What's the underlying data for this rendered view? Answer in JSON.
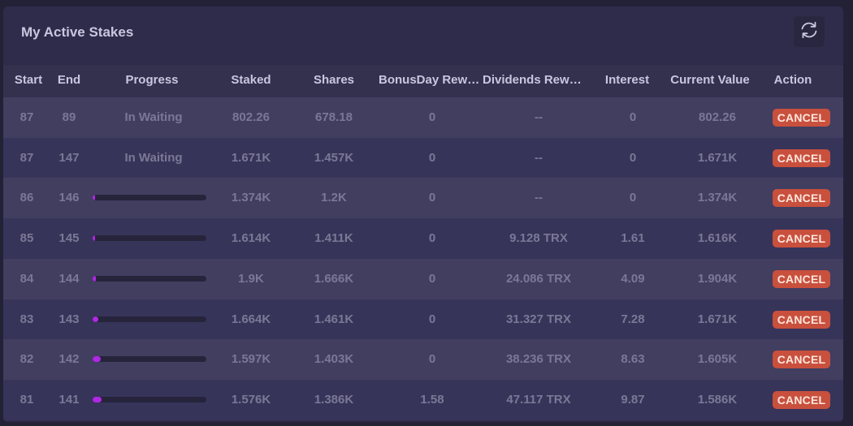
{
  "title": "My Active Stakes",
  "refresh_icon": "refresh-icon",
  "columns": [
    "Start",
    "End",
    "Progress",
    "Staked",
    "Shares",
    "BonusDay Rewa...",
    "Dividends Rewa...",
    "Interest",
    "Current Value",
    "Action"
  ],
  "cancel_label": "CANCEL",
  "progress_color": "#b028e6",
  "cancel_color": "#c8503d",
  "rows": [
    {
      "start": "87",
      "end": "89",
      "progress_text": "In Waiting",
      "progress": null,
      "staked": "802.26",
      "shares": "678.18",
      "bonus": "0",
      "dividends": "--",
      "interest": "0",
      "current_value": "802.26"
    },
    {
      "start": "87",
      "end": "147",
      "progress_text": "In Waiting",
      "progress": null,
      "staked": "1.671K",
      "shares": "1.457K",
      "bonus": "0",
      "dividends": "--",
      "interest": "0",
      "current_value": "1.671K"
    },
    {
      "start": "86",
      "end": "146",
      "progress_text": "",
      "progress": 0.02,
      "staked": "1.374K",
      "shares": "1.2K",
      "bonus": "0",
      "dividends": "--",
      "interest": "0",
      "current_value": "1.374K"
    },
    {
      "start": "85",
      "end": "145",
      "progress_text": "",
      "progress": 0.02,
      "staked": "1.614K",
      "shares": "1.411K",
      "bonus": "0",
      "dividends": "9.128 TRX",
      "interest": "1.61",
      "current_value": "1.616K"
    },
    {
      "start": "84",
      "end": "144",
      "progress_text": "",
      "progress": 0.03,
      "staked": "1.9K",
      "shares": "1.666K",
      "bonus": "0",
      "dividends": "24.086 TRX",
      "interest": "4.09",
      "current_value": "1.904K"
    },
    {
      "start": "83",
      "end": "143",
      "progress_text": "",
      "progress": 0.05,
      "staked": "1.664K",
      "shares": "1.461K",
      "bonus": "0",
      "dividends": "31.327 TRX",
      "interest": "7.28",
      "current_value": "1.671K"
    },
    {
      "start": "82",
      "end": "142",
      "progress_text": "",
      "progress": 0.07,
      "staked": "1.597K",
      "shares": "1.403K",
      "bonus": "0",
      "dividends": "38.236 TRX",
      "interest": "8.63",
      "current_value": "1.605K"
    },
    {
      "start": "81",
      "end": "141",
      "progress_text": "",
      "progress": 0.08,
      "staked": "1.576K",
      "shares": "1.386K",
      "bonus": "1.58",
      "dividends": "47.117 TRX",
      "interest": "9.87",
      "current_value": "1.586K"
    }
  ]
}
